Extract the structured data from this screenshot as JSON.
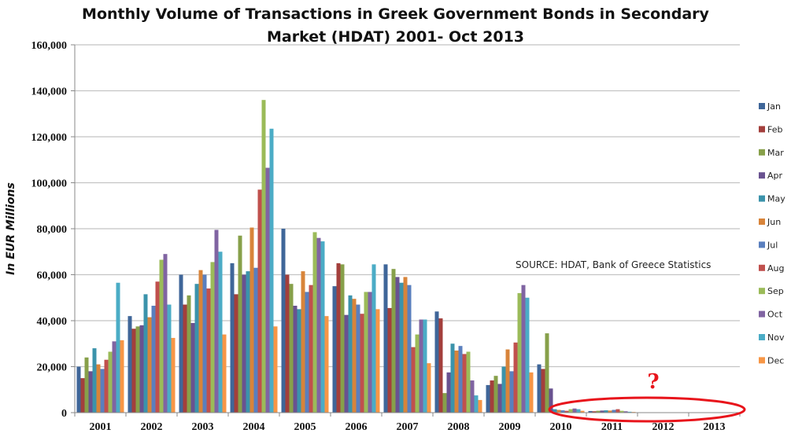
{
  "chart_data": {
    "type": "bar",
    "title_line1": "Monthly Volume of Transactions in Greek Government Bonds in Secondary",
    "title_line2": "Market (HDAT) 2001- Oct 2013",
    "ylabel": "In EUR Millions",
    "xlabel": "",
    "ylim": [
      0,
      160000
    ],
    "yticks": [
      "0",
      "20,000",
      "40,000",
      "60,000",
      "80,000",
      "100,000",
      "120,000",
      "140,000",
      "160,000"
    ],
    "grid": true,
    "legend_position": "right",
    "annotation": "SOURCE: HDAT, Bank of Greece Statistics",
    "highlight_mark": "?",
    "categories": [
      "2001",
      "2002",
      "2003",
      "2004",
      "2005",
      "2006",
      "2007",
      "2008",
      "2009",
      "2010",
      "2011",
      "2012",
      "2013"
    ],
    "series": [
      {
        "name": "Jan",
        "color": "#3f6699",
        "values": [
          20000,
          42000,
          60000,
          65000,
          80000,
          55000,
          64500,
          44000,
          12000,
          21000,
          700,
          150,
          100
        ]
      },
      {
        "name": "Feb",
        "color": "#a33f3c",
        "values": [
          15000,
          36500,
          47000,
          51500,
          60000,
          65000,
          45500,
          41000,
          14000,
          19000,
          600,
          120,
          100
        ]
      },
      {
        "name": "Mar",
        "color": "#87a04a",
        "values": [
          24000,
          37500,
          51000,
          77000,
          56000,
          64500,
          62500,
          8500,
          16000,
          34500,
          800,
          150,
          100
        ]
      },
      {
        "name": "Apr",
        "color": "#695290",
        "values": [
          18000,
          38000,
          39000,
          60000,
          46500,
          42500,
          59000,
          17500,
          12500,
          10500,
          900,
          100,
          100
        ]
      },
      {
        "name": "May",
        "color": "#3b93ab",
        "values": [
          28000,
          51500,
          56000,
          61500,
          45000,
          51000,
          56500,
          30000,
          20000,
          1500,
          1000,
          120,
          100
        ]
      },
      {
        "name": "Jun",
        "color": "#d8843a",
        "values": [
          21000,
          41500,
          62000,
          80500,
          61500,
          49500,
          59000,
          27000,
          27500,
          1200,
          900,
          100,
          100
        ]
      },
      {
        "name": "Jul",
        "color": "#5a7fbe",
        "values": [
          19000,
          46500,
          60000,
          63000,
          52500,
          47000,
          55500,
          29000,
          18000,
          1000,
          1200,
          100,
          100
        ]
      },
      {
        "name": "Aug",
        "color": "#c0504d",
        "values": [
          23000,
          57000,
          54000,
          97000,
          55500,
          43000,
          28500,
          25500,
          30500,
          800,
          1500,
          100,
          100
        ]
      },
      {
        "name": "Sep",
        "color": "#9bbb59",
        "values": [
          26500,
          66500,
          65500,
          136000,
          78500,
          52500,
          34000,
          26500,
          52000,
          1500,
          800,
          100,
          100
        ]
      },
      {
        "name": "Oct",
        "color": "#8064a2",
        "values": [
          31000,
          69000,
          79500,
          106500,
          76000,
          52500,
          40500,
          14000,
          55500,
          1800,
          600,
          100,
          100
        ]
      },
      {
        "name": "Nov",
        "color": "#4bacc6",
        "values": [
          56500,
          47000,
          70000,
          123500,
          74500,
          64500,
          40500,
          7500,
          50000,
          1500,
          400,
          100,
          0
        ]
      },
      {
        "name": "Dec",
        "color": "#f79646",
        "values": [
          31500,
          32500,
          34000,
          37500,
          42000,
          45000,
          21500,
          5500,
          17500,
          800,
          300,
          100,
          0
        ]
      }
    ],
    "highlight_color": "#e8141b"
  }
}
